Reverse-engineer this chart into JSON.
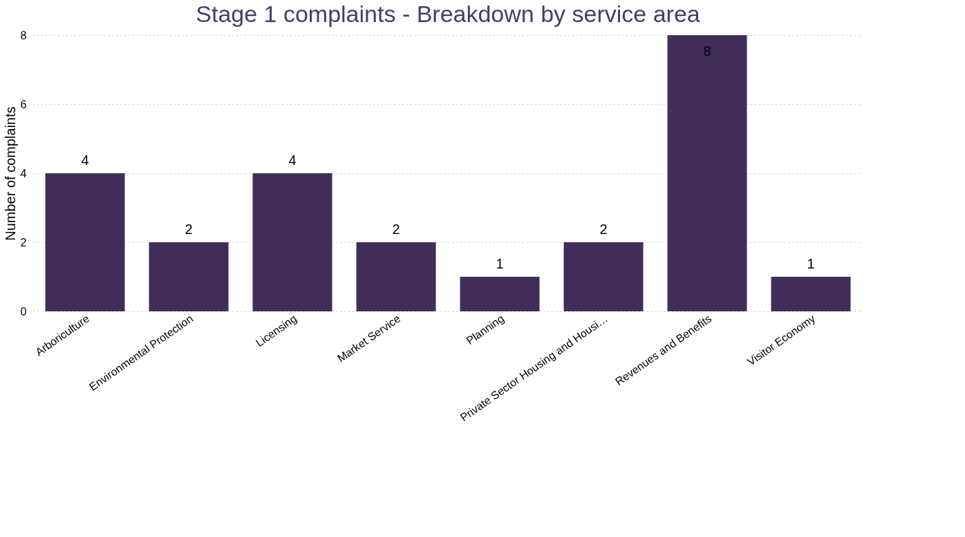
{
  "chart_data": {
    "type": "bar",
    "title": "Stage 1 complaints - Breakdown by service area",
    "ylabel": "Number of complaints",
    "categories": [
      "Arboriculture",
      "Environmental Protection",
      "Licensing",
      "Market Service",
      "Planning",
      "Private Sector Housing and Housi…",
      "Revenues and Benefits",
      "Visitor Economy"
    ],
    "values": [
      4,
      2,
      4,
      2,
      1,
      2,
      8,
      1
    ],
    "color": "#412d5a",
    "ylim": [
      0,
      8
    ],
    "yticks": [
      0,
      2,
      4,
      6,
      8
    ],
    "grid": "y",
    "data_labels": true
  }
}
